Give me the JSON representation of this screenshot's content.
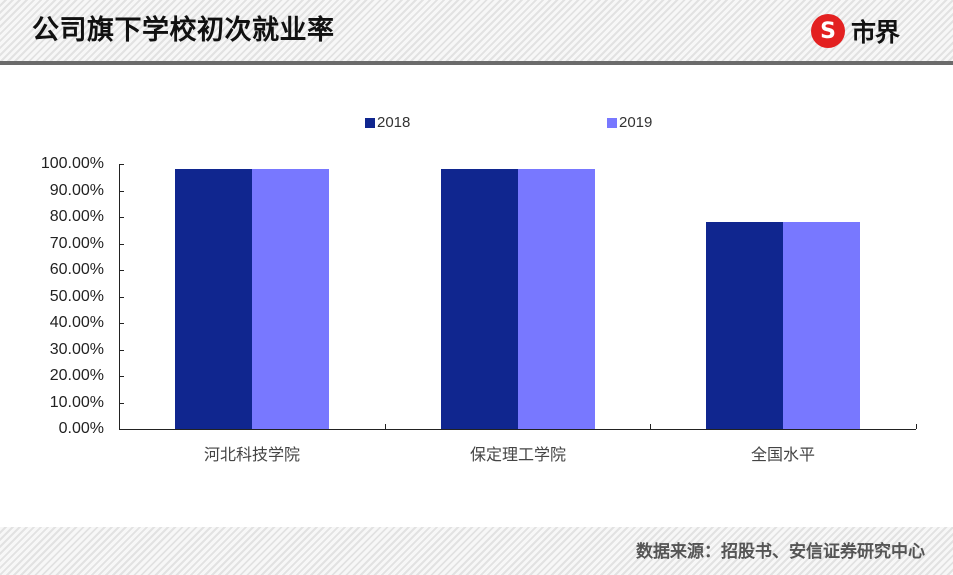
{
  "header": {
    "title": "公司旗下学校初次就业率",
    "logo": {
      "mark_glyph": "S",
      "text": "市界",
      "color": "#e32121"
    }
  },
  "footer": {
    "source": "数据来源：招股书、安信证券研究中心"
  },
  "colors": {
    "series_2018": "#10268f",
    "series_2019": "#7878ff",
    "axis": "#222222"
  },
  "chart_data": {
    "type": "bar",
    "title": "公司旗下学校初次就业率",
    "categories": [
      "河北科技学院",
      "保定理工学院",
      "全国水平"
    ],
    "series": [
      {
        "name": "2018",
        "color": "#10268f",
        "values": [
          98.0,
          98.0,
          78.0
        ]
      },
      {
        "name": "2019",
        "color": "#7878ff",
        "values": [
          98.0,
          98.0,
          78.0
        ]
      }
    ],
    "xlabel": "",
    "ylabel": "",
    "ylim": [
      0,
      100
    ],
    "yticks": [
      "0.00%",
      "10.00%",
      "20.00%",
      "30.00%",
      "40.00%",
      "50.00%",
      "60.00%",
      "70.00%",
      "80.00%",
      "90.00%",
      "100.00%"
    ],
    "grid": false,
    "legend_position": "top"
  }
}
